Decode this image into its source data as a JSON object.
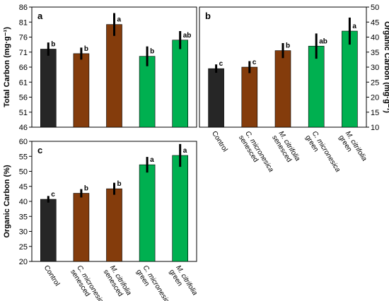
{
  "chart_data": [
    {
      "type": "bar",
      "panel_label": "a",
      "ylabel": "Total Carbon (mg·g⁻¹)",
      "ylim": [
        46,
        86
      ],
      "yticks": [
        46,
        51,
        56,
        61,
        66,
        71,
        76,
        81,
        86
      ],
      "categories": [
        "Control",
        "C. micronesica senesced",
        "M. citrifolia senesced",
        "C. micronesica green",
        "M. citrifolia green"
      ],
      "values": [
        72.0,
        70.5,
        80.2,
        69.6,
        75.0
      ],
      "errors": [
        2.2,
        2.0,
        3.8,
        3.3,
        3.0
      ],
      "significance": [
        "b",
        "b",
        "a",
        "b",
        "ab"
      ],
      "colors": [
        "#262626",
        "#843c0c",
        "#843c0c",
        "#00b050",
        "#00b050"
      ]
    },
    {
      "type": "bar",
      "panel_label": "b",
      "ylabel": "Organic Carbon (mg·g⁻¹)",
      "ylim": [
        10,
        50
      ],
      "yticks": [
        10,
        15,
        20,
        25,
        30,
        35,
        40,
        45,
        50
      ],
      "categories": [
        "Control",
        "C. micronesica senesced",
        "M. citrifolia senesced",
        "C. micronesica green",
        "M. citrifolia green"
      ],
      "values": [
        29.5,
        30.0,
        35.5,
        37.0,
        42.0
      ],
      "errors": [
        1.4,
        2.0,
        2.5,
        4.2,
        4.5
      ],
      "significance": [
        "c",
        "c",
        "b",
        "ab",
        "a"
      ],
      "colors": [
        "#262626",
        "#843c0c",
        "#843c0c",
        "#00b050",
        "#00b050"
      ]
    },
    {
      "type": "bar",
      "panel_label": "c",
      "ylabel": "Organic Carbon (%)",
      "ylim": [
        20,
        60
      ],
      "yticks": [
        20,
        25,
        30,
        35,
        40,
        45,
        50,
        55,
        60
      ],
      "categories": [
        "Control",
        "C. micronesica senesced",
        "M. citrifolia senesced",
        "C. micronesica green",
        "M. citrifolia green"
      ],
      "values": [
        40.7,
        42.7,
        44.2,
        52.2,
        55.3
      ],
      "errors": [
        1.1,
        1.4,
        2.0,
        2.6,
        3.8
      ],
      "significance": [
        "c",
        "b",
        "b",
        "a",
        "a"
      ],
      "colors": [
        "#262626",
        "#843c0c",
        "#843c0c",
        "#00b050",
        "#00b050"
      ]
    }
  ],
  "labels": {
    "cat1": "Control",
    "cat2_l1": "C. micronesica",
    "cat2_l2": "senesced",
    "cat3_l1": "M. citrifolia",
    "cat3_l2": "senesced",
    "cat4_l1": "C. micronesica",
    "cat4_l2": "green",
    "cat5_l1": "M. citrifolia",
    "cat5_l2": "green"
  }
}
